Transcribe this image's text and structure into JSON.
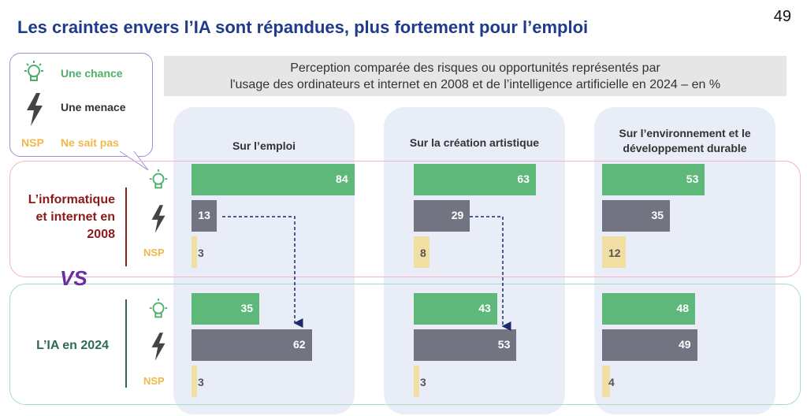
{
  "title": "Les craintes envers l’IA sont répandues, plus fortement pour l’emploi",
  "page_number": "49",
  "subtitle_line1": "Perception comparée des risques ou opportunités représentés par",
  "subtitle_line2": "l'usage des ordinateurs et internet en 2008 et de l’intelligence artificielle en 2024 – en %",
  "legend": {
    "chance": "Une chance",
    "menace": "Une menace",
    "nsp_tag": "NSP",
    "nsp": "Ne sait pas"
  },
  "vs": "VS",
  "rows": [
    {
      "label_l1": "L’informatique",
      "label_l2": "et internet en",
      "label_l3": "2008",
      "nsp_tag": "NSP"
    },
    {
      "label_l1": "L’IA en 2024",
      "nsp_tag": "NSP"
    }
  ],
  "columns": [
    {
      "title_l1": "Sur l’emploi",
      "title_l2": ""
    },
    {
      "title_l1": "Sur la création artistique",
      "title_l2": ""
    },
    {
      "title_l1": "Sur l’environnement et le",
      "title_l2": "développement durable"
    }
  ],
  "colors": {
    "chance": "#5db87a",
    "menace": "#727581",
    "nsp": "#f1dea3",
    "title": "#1f3a8a",
    "row2008": "#8b1a1a",
    "row2024": "#2e6b55"
  },
  "chart_data": {
    "type": "bar",
    "unit": "%",
    "categories": [
      "Sur l’emploi",
      "Sur la création artistique",
      "Sur l’environnement et le développement durable"
    ],
    "series": [
      {
        "name": "Une chance",
        "group": "L’informatique et internet en 2008",
        "values": [
          84,
          63,
          53
        ]
      },
      {
        "name": "Une menace",
        "group": "L’informatique et internet en 2008",
        "values": [
          13,
          29,
          35
        ]
      },
      {
        "name": "Ne sait pas",
        "group": "L’informatique et internet en 2008",
        "values": [
          3,
          8,
          12
        ]
      },
      {
        "name": "Une chance",
        "group": "L’IA en 2024",
        "values": [
          35,
          43,
          48
        ]
      },
      {
        "name": "Une menace",
        "group": "L’IA en 2024",
        "values": [
          62,
          53,
          49
        ]
      },
      {
        "name": "Ne sait pas",
        "group": "L’IA en 2024",
        "values": [
          3,
          3,
          4
        ]
      }
    ]
  }
}
